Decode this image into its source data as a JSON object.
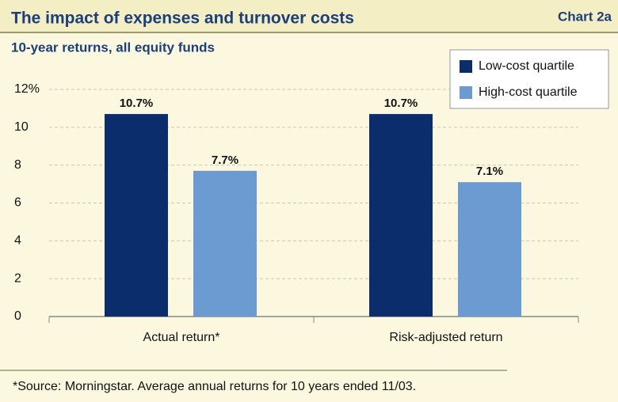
{
  "chart_data": {
    "type": "bar",
    "title": "The impact of expenses and turnover costs",
    "chart_label": "Chart 2a",
    "subtitle": "10-year returns, all equity funds",
    "footnote": "*Source: Morningstar. Average annual returns for 10 years ended 11/03.",
    "categories": [
      "Actual return*",
      "Risk-adjusted return"
    ],
    "series": [
      {
        "name": "Low-cost quartile",
        "color": "#0b2d6b",
        "values": [
          10.7,
          10.7
        ],
        "value_labels": [
          "10.7%",
          "10.7%"
        ]
      },
      {
        "name": "High-cost quartile",
        "color": "#6b9bd0",
        "values": [
          7.7,
          7.1
        ],
        "value_labels": [
          "7.7%",
          "7.1%"
        ]
      }
    ],
    "ylim": [
      0,
      12
    ],
    "yticks": [
      0,
      2,
      4,
      6,
      8,
      10,
      {
        "value": 12,
        "label": "12%"
      }
    ],
    "grid": true,
    "legend": "upper right"
  }
}
